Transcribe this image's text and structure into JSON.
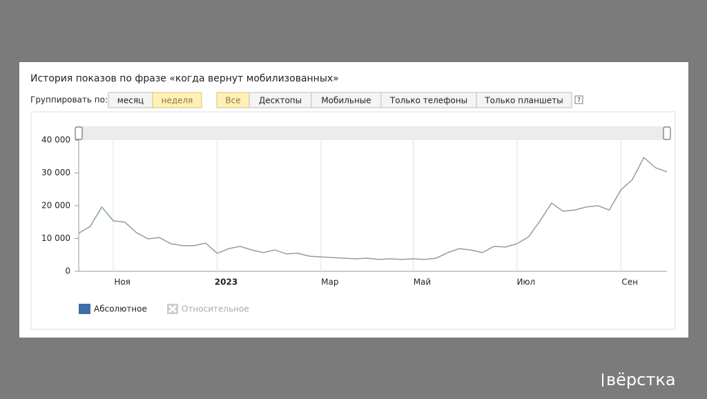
{
  "ui": {
    "group_label": "Группировать по:",
    "group_buttons": [
      "месяц",
      "неделя"
    ],
    "filter_buttons": [
      "Все",
      "Десктопы",
      "Мобильные",
      "Только телефоны",
      "Только планшеты"
    ],
    "help": "?",
    "legend_disabled": "Относительное",
    "watermark": "вёрстка"
  },
  "chart_data": {
    "type": "line",
    "title": "История показов по фразе «когда вернут мобилизованных»",
    "categories": [
      null,
      null,
      null,
      "Ноя",
      null,
      null,
      null,
      null,
      null,
      null,
      null,
      null,
      "2023",
      null,
      null,
      null,
      null,
      null,
      null,
      null,
      null,
      "Мар",
      null,
      null,
      null,
      null,
      null,
      null,
      null,
      "Май",
      null,
      null,
      null,
      null,
      null,
      null,
      null,
      null,
      "Июл",
      null,
      null,
      null,
      null,
      null,
      null,
      null,
      null,
      "Сен",
      null,
      null,
      null,
      null
    ],
    "series": [
      {
        "name": "Абсолютное",
        "color": "#8b9da6",
        "values": [
          11600,
          13700,
          19600,
          15400,
          15000,
          11800,
          9900,
          10300,
          8400,
          7800,
          7800,
          8600,
          5500,
          6900,
          7600,
          6500,
          5700,
          6500,
          5300,
          5500,
          4600,
          4400,
          4200,
          4000,
          3800,
          4000,
          3600,
          3800,
          3600,
          3800,
          3600,
          4000,
          5700,
          6900,
          6500,
          5700,
          7600,
          7400,
          8400,
          10500,
          15400,
          20800,
          18300,
          18700,
          19600,
          20000,
          18700,
          24800,
          28000,
          34700,
          31600,
          30300
        ]
      }
    ],
    "ylim": [
      0,
      40000
    ],
    "yticks": [
      0,
      {
        "value": 10000,
        "label": "10 000"
      },
      {
        "value": 20000,
        "label": "20 000"
      },
      {
        "value": 30000,
        "label": "30 000"
      },
      {
        "value": 40000,
        "label": "40 000"
      }
    ],
    "grid": true
  }
}
